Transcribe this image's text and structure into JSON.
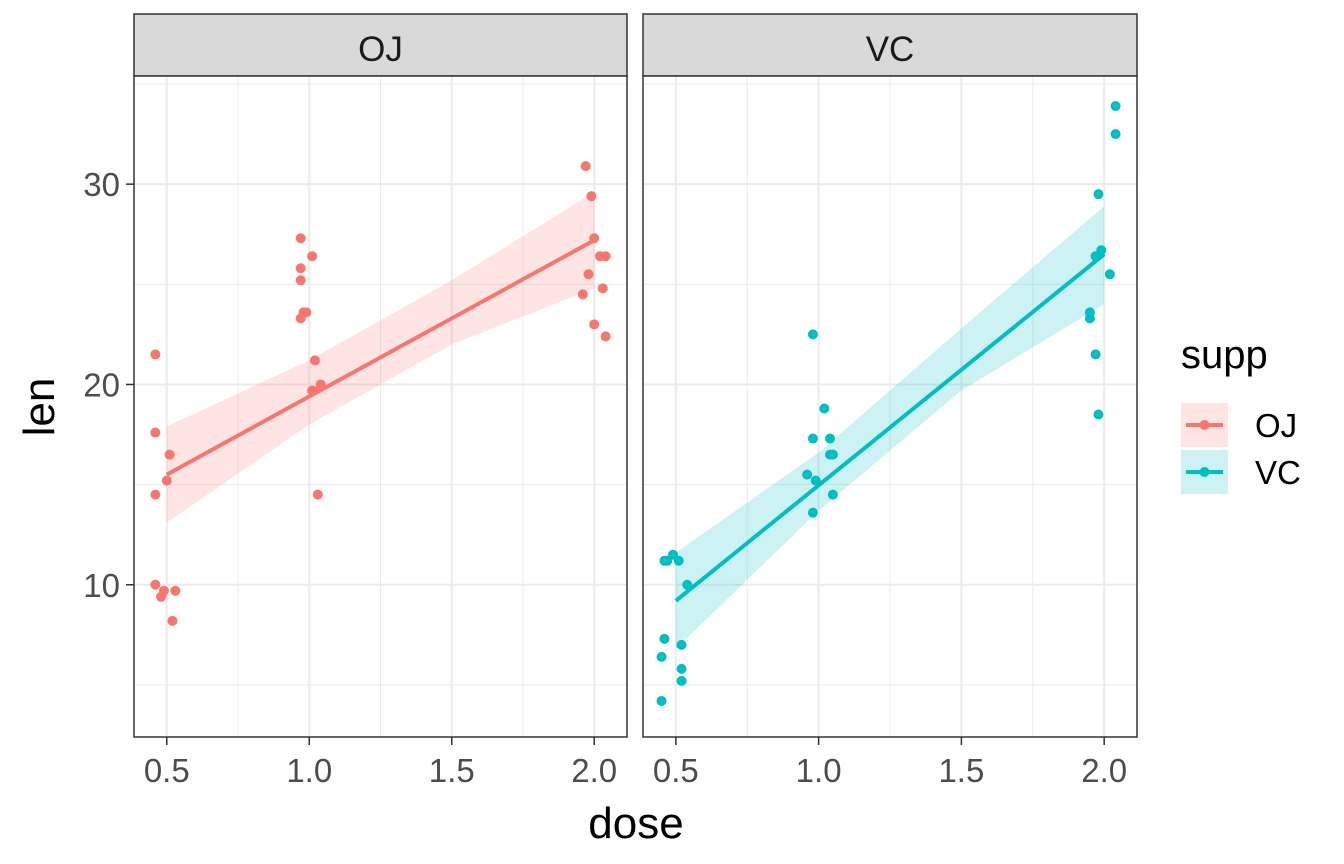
{
  "chart_data": {
    "type": "scatter",
    "xlabel": "dose",
    "ylabel": "len",
    "xlim": [
      0.385,
      2.115
    ],
    "ylim": [
      2.4,
      35.4
    ],
    "xticks": [
      0.5,
      1.0,
      1.5,
      2.0
    ],
    "xtick_labels": [
      "0.5",
      "1.0",
      "1.5",
      "2.0"
    ],
    "yticks": [
      10,
      20,
      30
    ],
    "ytick_labels": [
      "10",
      "20",
      "30"
    ],
    "grid": true,
    "legend": {
      "title": "supp",
      "placement": "right",
      "entries": [
        "OJ",
        "VC"
      ]
    },
    "colors": {
      "OJ": "#F8766D",
      "VC": "#00BFC4"
    },
    "panels": [
      {
        "name": "OJ",
        "color": "#F8766D",
        "points": [
          [
            0.46,
            21.5
          ],
          [
            0.46,
            17.6
          ],
          [
            0.46,
            14.5
          ],
          [
            0.46,
            10.0
          ],
          [
            0.48,
            9.4
          ],
          [
            0.49,
            9.7
          ],
          [
            0.5,
            15.2
          ],
          [
            0.51,
            16.5
          ],
          [
            0.52,
            8.2
          ],
          [
            0.53,
            9.7
          ],
          [
            0.97,
            27.3
          ],
          [
            0.97,
            25.8
          ],
          [
            0.97,
            25.2
          ],
          [
            0.97,
            23.3
          ],
          [
            0.98,
            23.6
          ],
          [
            0.99,
            23.6
          ],
          [
            1.01,
            19.7
          ],
          [
            1.01,
            26.4
          ],
          [
            1.02,
            21.2
          ],
          [
            1.03,
            14.5
          ],
          [
            1.04,
            19.9
          ],
          [
            1.04,
            20.0
          ],
          [
            1.97,
            30.9
          ],
          [
            1.96,
            24.5
          ],
          [
            1.98,
            25.5
          ],
          [
            1.99,
            29.4
          ],
          [
            2.0,
            27.3
          ],
          [
            2.0,
            23.0
          ],
          [
            2.02,
            26.4
          ],
          [
            2.03,
            24.8
          ],
          [
            2.04,
            26.4
          ],
          [
            2.04,
            22.4
          ]
        ],
        "fit": {
          "x": [
            0.5,
            2.0
          ],
          "y": [
            15.5,
            27.2
          ]
        },
        "ci": {
          "x": [
            0.5,
            1.0,
            1.5,
            2.0
          ],
          "lower": [
            13.1,
            18.0,
            22.0,
            24.8
          ],
          "upper": [
            17.9,
            21.2,
            25.2,
            29.6
          ]
        }
      },
      {
        "name": "VC",
        "color": "#00BFC4",
        "points": [
          [
            0.45,
            4.2
          ],
          [
            0.45,
            6.4
          ],
          [
            0.46,
            7.3
          ],
          [
            0.46,
            11.2
          ],
          [
            0.47,
            11.2
          ],
          [
            0.49,
            11.5
          ],
          [
            0.51,
            11.2
          ],
          [
            0.52,
            7.0
          ],
          [
            0.52,
            5.8
          ],
          [
            0.52,
            5.2
          ],
          [
            0.54,
            10.0
          ],
          [
            0.98,
            22.5
          ],
          [
            0.96,
            15.5
          ],
          [
            0.98,
            17.3
          ],
          [
            0.98,
            13.6
          ],
          [
            0.99,
            15.2
          ],
          [
            1.02,
            18.8
          ],
          [
            1.04,
            17.3
          ],
          [
            1.04,
            16.5
          ],
          [
            1.05,
            16.5
          ],
          [
            1.05,
            14.5
          ],
          [
            1.95,
            23.6
          ],
          [
            1.95,
            23.3
          ],
          [
            1.97,
            26.4
          ],
          [
            1.97,
            21.5
          ],
          [
            1.98,
            18.5
          ],
          [
            1.98,
            29.5
          ],
          [
            1.99,
            26.7
          ],
          [
            2.02,
            25.5
          ],
          [
            2.04,
            32.5
          ],
          [
            2.04,
            33.9
          ]
        ],
        "fit": {
          "x": [
            0.5,
            2.0
          ],
          "y": [
            9.2,
            26.5
          ]
        },
        "ci": {
          "x": [
            0.5,
            1.0,
            1.5,
            2.0
          ],
          "lower": [
            6.8,
            13.7,
            19.7,
            24.0
          ],
          "upper": [
            11.6,
            16.6,
            22.8,
            28.9
          ]
        }
      }
    ]
  }
}
